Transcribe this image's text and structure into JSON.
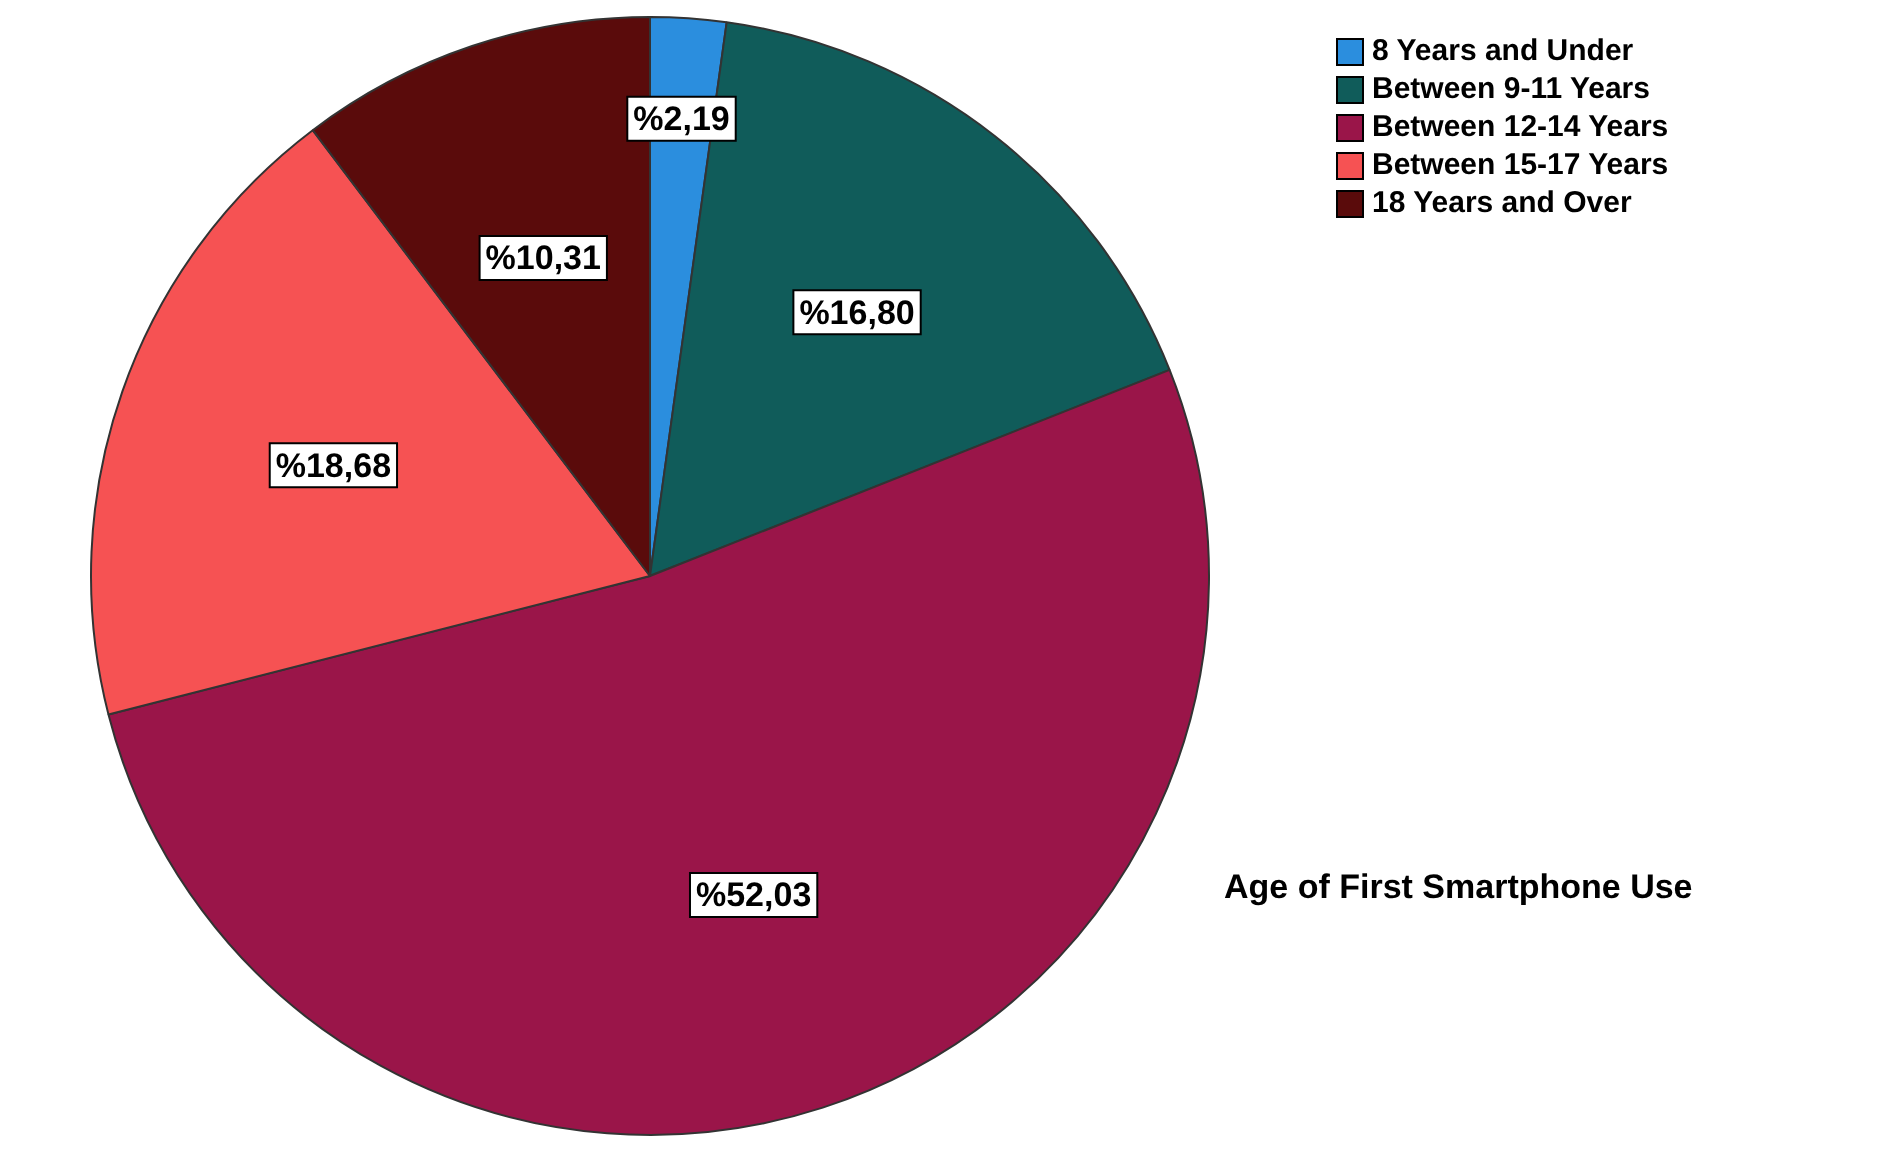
{
  "chart_data": {
    "type": "pie",
    "title": "Age of First Smartphone Use",
    "categories": [
      "8 Years and Under",
      "Between 9-11 Years",
      "Between 12-14 Years",
      "Between 15-17 Years",
      "18 Years and Over"
    ],
    "values": [
      2.19,
      16.8,
      52.03,
      18.68,
      10.31
    ],
    "colors": [
      "#2b8ede",
      "#105c5a",
      "#9a1549",
      "#f65253",
      "#5a0b0b"
    ],
    "value_labels": [
      "%2,19",
      "%16,80",
      "%52,03",
      "%18,68",
      "%10,31"
    ],
    "legend": "top right"
  }
}
